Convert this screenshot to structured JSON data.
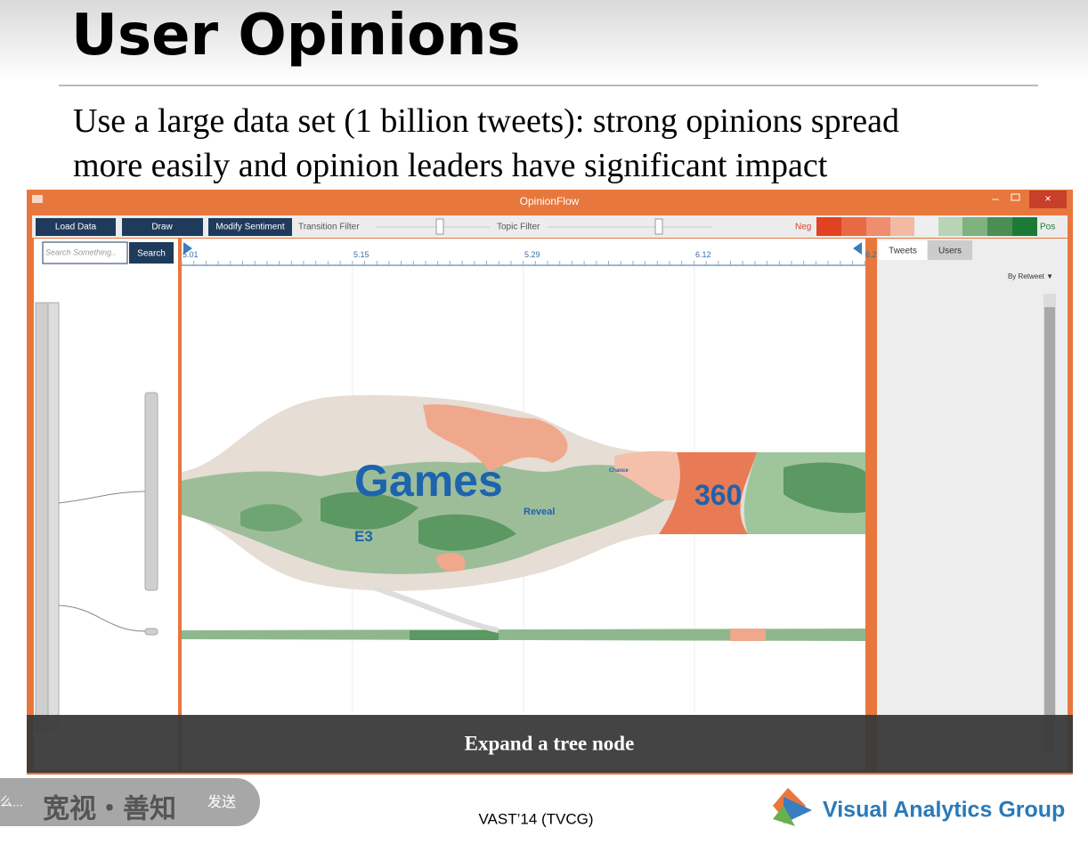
{
  "slide": {
    "title": "User Opinions",
    "subtitle_lines": [
      "Use a large data set (1 billion tweets): strong opinions spread",
      "more easily and opinion leaders have significant impact"
    ]
  },
  "window": {
    "title": "OpinionFlow",
    "toolbar": {
      "buttons": [
        "Load Data",
        "Draw",
        "Modify Sentiment"
      ],
      "filters": [
        "Transition Filter",
        "Topic Filter"
      ],
      "legend_neg": "Neg",
      "legend_pos": "Pos"
    },
    "search": {
      "placeholder": "Search Something..",
      "button": "Search"
    },
    "timeline": {
      "labels": [
        "5.01",
        "5.15",
        "5.29",
        "6.12",
        "6.2"
      ]
    },
    "topics": [
      "Games",
      "360",
      "E3",
      "Reveal",
      "Chance"
    ],
    "side_panel": {
      "tabs": [
        "Tweets",
        "Users"
      ],
      "sort": "By Retweet ▼"
    },
    "caption": "Expand a tree node"
  },
  "footer": {
    "venue": "VAST’14 (TVCG)",
    "logo": "Visual Analytics Group",
    "overlay_prefix": "么...",
    "overlay_text": "宽视・善知",
    "overlay_send": "发送"
  }
}
